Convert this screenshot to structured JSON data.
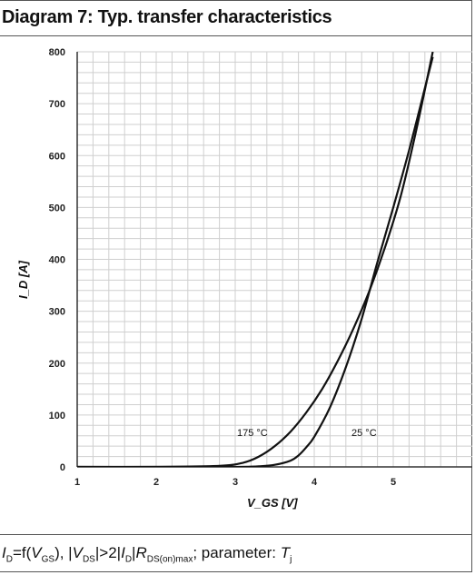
{
  "chart_data": {
    "type": "line",
    "title": "Diagram 7: Typ. transfer characteristics",
    "xlabel": "V_GS [V]",
    "ylabel": "I_D [A]",
    "xlim": [
      1,
      5.5
    ],
    "ylim": [
      0,
      800
    ],
    "xticks": [
      1,
      2,
      3,
      4,
      5
    ],
    "yticks": [
      0,
      100,
      200,
      300,
      400,
      500,
      600,
      700,
      800
    ],
    "grid": true,
    "series": [
      {
        "name": "175 °C",
        "x": [
          1.0,
          2.0,
          2.8,
          3.1,
          3.3,
          3.5,
          3.7,
          3.9,
          4.1,
          4.3,
          4.5,
          4.7,
          4.9,
          5.1,
          5.3,
          5.5
        ],
        "y": [
          0,
          0,
          2,
          8,
          20,
          40,
          68,
          105,
          150,
          205,
          268,
          340,
          425,
          525,
          655,
          800
        ]
      },
      {
        "name": "25 °C",
        "x": [
          1.0,
          2.0,
          3.0,
          3.3,
          3.5,
          3.7,
          3.8,
          3.9,
          4.0,
          4.2,
          4.4,
          4.6,
          4.8,
          5.0,
          5.2,
          5.4,
          5.5
        ],
        "y": [
          0,
          0,
          0,
          1,
          4,
          12,
          22,
          38,
          58,
          115,
          192,
          285,
          395,
          500,
          610,
          730,
          790
        ]
      }
    ],
    "annotations": [
      "175 °C",
      "25 °C"
    ],
    "caption": {
      "i_d": "I",
      "i_d_sub": "D",
      "eq": "=f(",
      "v_gs": "V",
      "v_gs_sub": "GS",
      "mid1": "), |",
      "v_ds": "V",
      "v_ds_sub": "DS",
      "mid2": "|>2|",
      "i_d2": "I",
      "i_d2_sub": "D",
      "mid3": "|",
      "r": "R",
      "r_sub": "DS(on)max",
      "mid4": "; parameter: ",
      "t": "T",
      "t_sub": "j"
    }
  }
}
